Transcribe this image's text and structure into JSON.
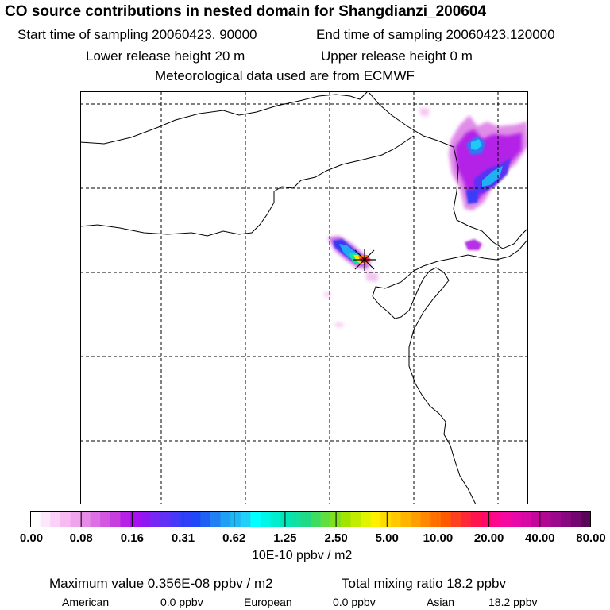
{
  "title": "CO  source contributions in nested domain for Shangdianzi_200604",
  "header": {
    "start_time": "Start time of sampling 20060423. 90000",
    "end_time": "End time of sampling 20060423.120000",
    "lower_release": "Lower release height   20 m",
    "upper_release": "Upper release height    0 m",
    "met_data": "Meteorological data used are from ECMWF"
  },
  "colorbar": {
    "tick_labels": [
      "0.00",
      "0.08",
      "0.16",
      "0.31",
      "0.62",
      "1.25",
      "2.50",
      "5.00",
      "10.00",
      "20.00",
      "40.00",
      "80.00"
    ],
    "colors": [
      "#ffffff",
      "#fde8fb",
      "#fad2f7",
      "#f6bcf2",
      "#f0a4ee",
      "#e68ae8",
      "#dc70e4",
      "#d256e0",
      "#c63ee0",
      "#b820e6",
      "#a810f0",
      "#9018f2",
      "#7828f4",
      "#6030f6",
      "#4838f8",
      "#3040f8",
      "#2048f6",
      "#2060f4",
      "#2080f4",
      "#20a0f4",
      "#20b8f4",
      "#20d0f6",
      "#00ffff",
      "#00f6e8",
      "#00eed0",
      "#00e6b8",
      "#10e0a0",
      "#20da88",
      "#40dc60",
      "#60e040",
      "#80e020",
      "#a0e400",
      "#c0ec00",
      "#e0f400",
      "#fff000",
      "#ffdc00",
      "#ffc800",
      "#ffb400",
      "#ff9e00",
      "#ff8800",
      "#ff7000",
      "#ff5a00",
      "#ff4020",
      "#ff2838",
      "#ff1450",
      "#ff0a68",
      "#ff0890",
      "#f408a0",
      "#e808a8",
      "#d808a4",
      "#c4089c",
      "#b00894",
      "#9c088c",
      "#880880",
      "#740670",
      "#5a0458"
    ],
    "units": "10E-10 ppbv / m2"
  },
  "footer": {
    "max_value": "Maximum value  0.356E-08 ppbv / m2",
    "total_mixing": "Total mixing ratio     18.2 ppbv",
    "sources": [
      {
        "name": "American",
        "value": "0.0 ppbv"
      },
      {
        "name": "European",
        "value": "0.0 ppbv"
      },
      {
        "name": "Asian",
        "value": "18.2 ppbv"
      }
    ]
  }
}
